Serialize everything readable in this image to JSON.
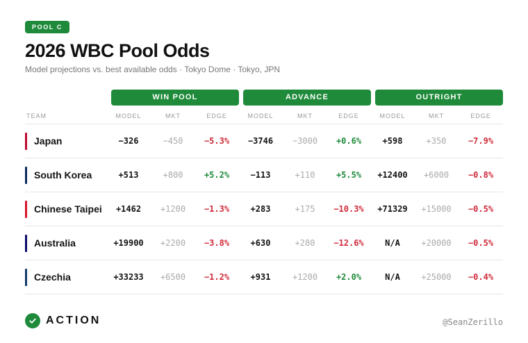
{
  "badge": "POOL C",
  "title": "2026 WBC Pool Odds",
  "subtitle": "Model projections vs. best available odds · Tokyo Dome · Tokyo, JPN",
  "groups": {
    "win": "WIN POOL",
    "advance": "ADVANCE",
    "outright": "OUTRIGHT"
  },
  "columns": {
    "team": "TEAM",
    "model": "MODEL",
    "mkt": "MKT",
    "edge": "EDGE"
  },
  "colors": {
    "accent": "#1e8a3a",
    "positive": "#1e8a3a",
    "negative": "#d12a3a"
  },
  "rows": [
    {
      "team": "Japan",
      "color": "#bc0a2c",
      "win": {
        "model": "−326",
        "mkt": "−450",
        "edge": "−5.3%"
      },
      "adv": {
        "model": "−3746",
        "mkt": "−3000",
        "edge": "+0.6%"
      },
      "out": {
        "model": "+598",
        "mkt": "+350",
        "edge": "−7.9%"
      }
    },
    {
      "team": "South Korea",
      "color": "#0d2a5c",
      "win": {
        "model": "+513",
        "mkt": "+800",
        "edge": "+5.2%"
      },
      "adv": {
        "model": "−113",
        "mkt": "+110",
        "edge": "+5.5%"
      },
      "out": {
        "model": "+12400",
        "mkt": "+6000",
        "edge": "−0.8%"
      }
    },
    {
      "team": "Chinese Taipei",
      "color": "#d8142a",
      "win": {
        "model": "+1462",
        "mkt": "+1200",
        "edge": "−1.3%"
      },
      "adv": {
        "model": "+283",
        "mkt": "+175",
        "edge": "−10.3%"
      },
      "out": {
        "model": "+71329",
        "mkt": "+15000",
        "edge": "−0.5%"
      }
    },
    {
      "team": "Australia",
      "color": "#0a0a6a",
      "win": {
        "model": "+19900",
        "mkt": "+2200",
        "edge": "−3.8%"
      },
      "adv": {
        "model": "+630",
        "mkt": "+280",
        "edge": "−12.6%"
      },
      "out": {
        "model": "N/A",
        "mkt": "+20000",
        "edge": "−0.5%"
      }
    },
    {
      "team": "Czechia",
      "color": "#113a6a",
      "win": {
        "model": "+33233",
        "mkt": "+6500",
        "edge": "−1.2%"
      },
      "adv": {
        "model": "+931",
        "mkt": "+1200",
        "edge": "+2.0%"
      },
      "out": {
        "model": "N/A",
        "mkt": "+25000",
        "edge": "−0.4%"
      }
    }
  ],
  "footer": {
    "brand": "ACTION",
    "icon": "check-circle-icon",
    "handle": "@SeanZerillo"
  }
}
